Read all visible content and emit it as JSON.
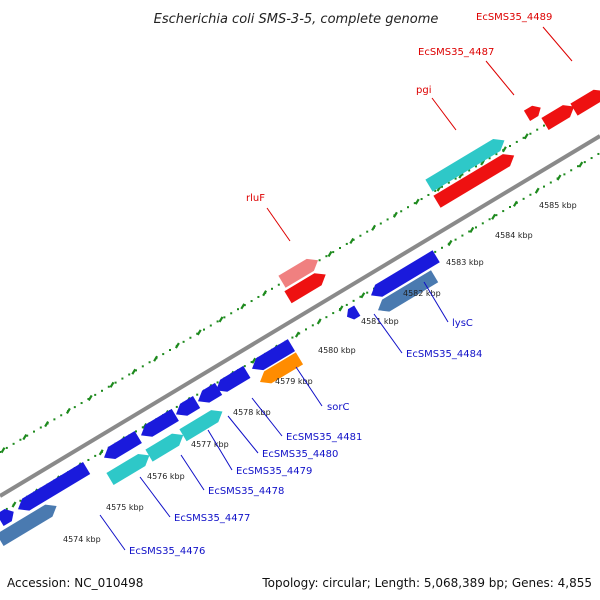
{
  "title": "Escherichia coli SMS-3-5, complete genome",
  "footer": {
    "accession": "Accession: NC_010498",
    "summary": "Topology: circular; Length: 5,068,389 bp; Genes: 4,855"
  },
  "colors": {
    "backbone": "#8a8a8a",
    "ticks": "#1e8a1e",
    "blue": "#1a1adc",
    "steel": "#4a7ab0",
    "cyan": "#2ec8c8",
    "red": "#ee1111",
    "pink": "#f08080",
    "orange": "#ff8c00",
    "label_red": "#dd0000",
    "label_blue": "#1010c8"
  },
  "scale_labels": [
    {
      "text": "4574 kbp",
      "kbp": 4574
    },
    {
      "text": "4575 kbp",
      "kbp": 4575
    },
    {
      "text": "4576 kbp",
      "kbp": 4576
    },
    {
      "text": "4577 kbp",
      "kbp": 4577
    },
    {
      "text": "4578 kbp",
      "kbp": 4578
    },
    {
      "text": "4579 kbp",
      "kbp": 4579
    },
    {
      "text": "4580 kbp",
      "kbp": 4580
    },
    {
      "text": "4581 kbp",
      "kbp": 4581
    },
    {
      "text": "4582 kbp",
      "kbp": 4582
    },
    {
      "text": "4583 kbp",
      "kbp": 4583
    },
    {
      "text": "4584 kbp",
      "kbp": 4584
    },
    {
      "text": "4585 kbp",
      "kbp": 4585
    }
  ],
  "genes_top": [
    {
      "name": "rluF",
      "color": "pink"
    },
    {
      "name": "pgi",
      "color": "cyan"
    },
    {
      "name": "EcSMS35_4487",
      "color": "red"
    },
    {
      "name": "EcSMS35_4489",
      "color": "red"
    }
  ],
  "genes_bottom": [
    {
      "name": "EcSMS35_4476",
      "color": "steel"
    },
    {
      "name": "EcSMS35_4477",
      "color": "cyan"
    },
    {
      "name": "EcSMS35_4478",
      "color": "blue"
    },
    {
      "name": "EcSMS35_4479",
      "color": "cyan"
    },
    {
      "name": "EcSMS35_4480",
      "color": "blue"
    },
    {
      "name": "EcSMS35_4481",
      "color": "blue"
    },
    {
      "name": "sorC",
      "color": "orange"
    },
    {
      "name": "EcSMS35_4484",
      "color": "blue"
    },
    {
      "name": "lysC",
      "color": "steel"
    }
  ]
}
